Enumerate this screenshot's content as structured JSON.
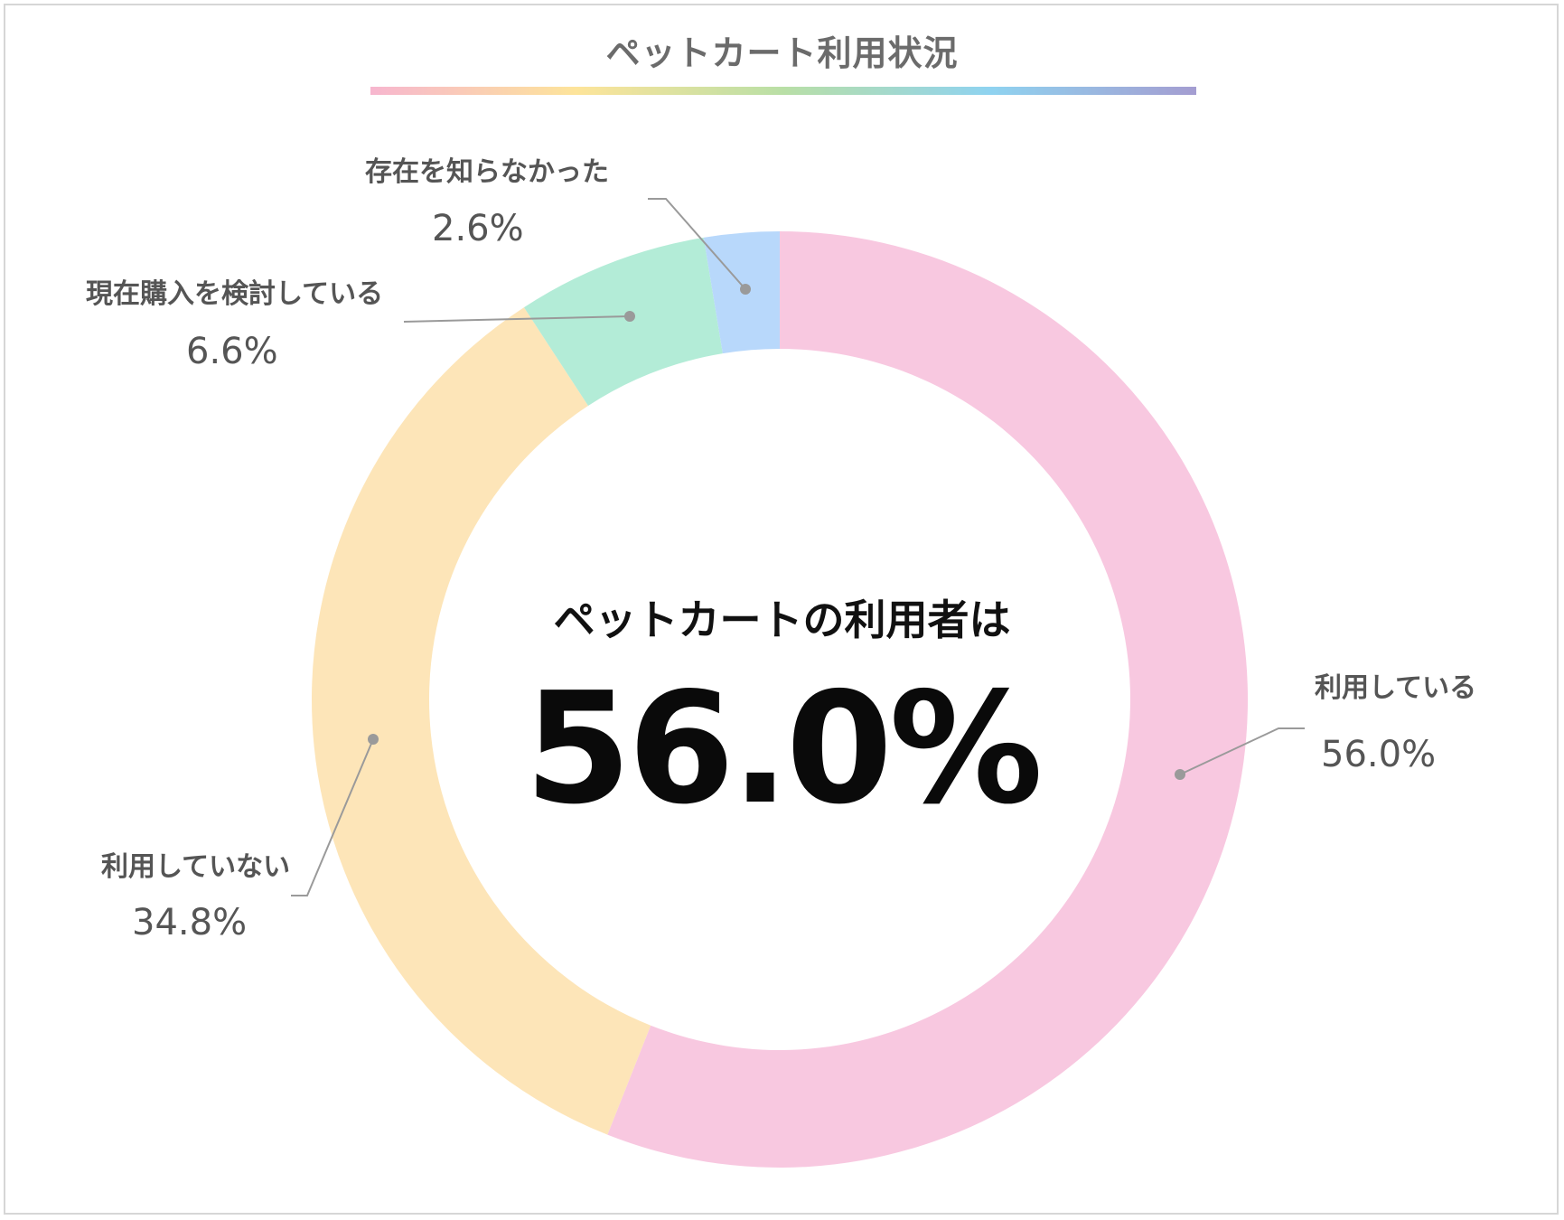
{
  "chart_data": {
    "type": "pie",
    "title": "ペットカート利用状況",
    "center_label": "ペットカートの利用者は",
    "center_value": "56.0%",
    "slices": [
      {
        "label": "利用している",
        "value": 56.0,
        "value_label": "56.0%",
        "color": "#f8c8e0"
      },
      {
        "label": "利用していない",
        "value": 34.8,
        "value_label": "34.8%",
        "color": "#fde5b8"
      },
      {
        "label": "現在購入を検討している",
        "value": 6.6,
        "value_label": "6.6%",
        "color": "#b3ecd7"
      },
      {
        "label": "存在を知らなかった",
        "value": 2.6,
        "value_label": "2.6%",
        "color": "#b8d8fb"
      }
    ]
  }
}
